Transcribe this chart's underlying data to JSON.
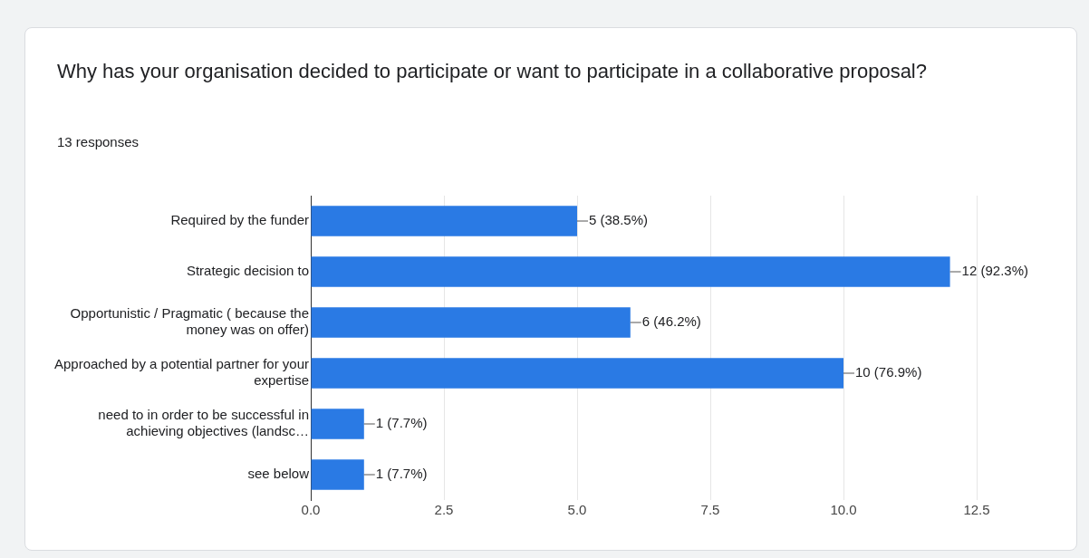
{
  "chart_data": {
    "type": "bar",
    "orientation": "horizontal",
    "title": "Why has your organisation decided to participate or want to participate in a collaborative proposal?",
    "subtitle": "13 responses",
    "categories": [
      "Required by the funder",
      "Strategic decision to",
      "Opportunistic / Pragmatic ( because the money was on offer)",
      "Approached by a potential partner for your expertise",
      "need to in order to be successful in achieving objectives (landsc…",
      "see below"
    ],
    "values": [
      5,
      12,
      6,
      10,
      1,
      1
    ],
    "value_labels": [
      "5 (38.5%)",
      "12 (92.3%)",
      "6 (46.2%)",
      "10 (76.9%)",
      "1 (7.7%)",
      "1 (7.7%)"
    ],
    "color": "#2a7ae4",
    "xlim": [
      0,
      12.5
    ],
    "xticks": [
      {
        "value": 0,
        "label": "0.0"
      },
      {
        "value": 2.5,
        "label": "2.5"
      },
      {
        "value": 5,
        "label": "5.0"
      },
      {
        "value": 7.5,
        "label": "7.5"
      },
      {
        "value": 10,
        "label": "10.0"
      },
      {
        "value": 12.5,
        "label": "12.5"
      }
    ],
    "grid": "x",
    "legend": false
  }
}
